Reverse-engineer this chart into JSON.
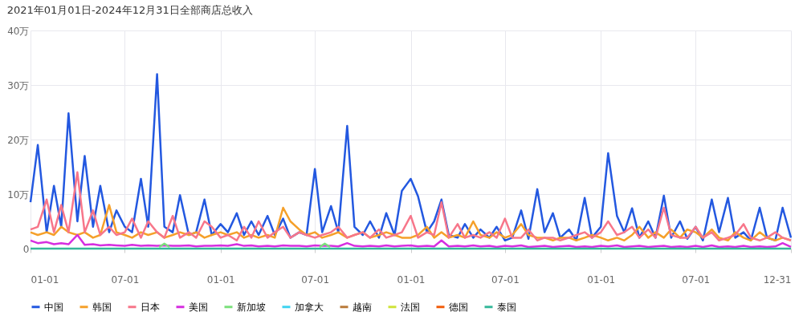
{
  "chart_data": {
    "type": "line",
    "title": "2021年01月01日-2024年12月31日全部商店总收入",
    "x": [
      "2021-01-01",
      "2021-01-15",
      "2021-02-01",
      "2021-02-15",
      "2021-03-01",
      "2021-03-15",
      "2021-04-01",
      "2021-04-15",
      "2021-05-01",
      "2021-05-15",
      "2021-06-01",
      "2021-06-15",
      "2021-07-01",
      "2021-07-15",
      "2021-08-01",
      "2021-08-15",
      "2021-09-01",
      "2021-09-15",
      "2021-10-01",
      "2021-10-15",
      "2021-11-01",
      "2021-11-15",
      "2021-12-01",
      "2021-12-15",
      "2022-01-01",
      "2022-01-15",
      "2022-02-01",
      "2022-02-15",
      "2022-03-01",
      "2022-03-15",
      "2022-04-01",
      "2022-04-15",
      "2022-05-01",
      "2022-05-15",
      "2022-06-01",
      "2022-06-15",
      "2022-07-01",
      "2022-07-15",
      "2022-08-01",
      "2022-08-15",
      "2022-09-01",
      "2022-09-15",
      "2022-10-01",
      "2022-10-15",
      "2022-11-01",
      "2022-11-15",
      "2022-12-01",
      "2022-12-15",
      "2023-01-01",
      "2023-01-15",
      "2023-02-01",
      "2023-02-15",
      "2023-03-01",
      "2023-03-15",
      "2023-04-01",
      "2023-04-15",
      "2023-05-01",
      "2023-05-15",
      "2023-06-01",
      "2023-06-15",
      "2023-07-01",
      "2023-07-15",
      "2023-08-01",
      "2023-08-15",
      "2023-09-01",
      "2023-09-15",
      "2023-10-01",
      "2023-10-15",
      "2023-11-01",
      "2023-11-15",
      "2023-12-01",
      "2023-12-15",
      "2024-01-01",
      "2024-01-15",
      "2024-02-01",
      "2024-02-15",
      "2024-03-01",
      "2024-03-15",
      "2024-04-01",
      "2024-04-15",
      "2024-05-01",
      "2024-05-15",
      "2024-06-01",
      "2024-06-15",
      "2024-07-01",
      "2024-07-15",
      "2024-08-01",
      "2024-08-15",
      "2024-09-01",
      "2024-09-15",
      "2024-10-01",
      "2024-10-15",
      "2024-11-01",
      "2024-11-15",
      "2024-12-01",
      "2024-12-15",
      "2024-12-31"
    ],
    "series": [
      {
        "name": "中国",
        "color": "#2358e0",
        "values": [
          8.5,
          19,
          3,
          11.5,
          4,
          24.8,
          5,
          17,
          4,
          11.5,
          3,
          7,
          4,
          3,
          12.8,
          4,
          32,
          4,
          3,
          9.8,
          2.5,
          3,
          9,
          2.5,
          4.5,
          3,
          6.5,
          2.5,
          5,
          2.5,
          6,
          2.5,
          5.5,
          2,
          3,
          2.5,
          14.6,
          3,
          7.8,
          3,
          22.5,
          4,
          2.5,
          5,
          2,
          6.5,
          2.5,
          10.6,
          12.8,
          9.6,
          3,
          5,
          9,
          2.5,
          2,
          4.5,
          2,
          3.5,
          2,
          4,
          1.5,
          2,
          7,
          1.8,
          10.9,
          3,
          6.5,
          2,
          3.5,
          1.5,
          9.3,
          2,
          4,
          17.5,
          6,
          3,
          7.4,
          2,
          5,
          2,
          9.7,
          2,
          5,
          1.8,
          4,
          1.5,
          9,
          3,
          9.3,
          2,
          3,
          1.5,
          7.5,
          2,
          1.5,
          7.5,
          2
        ]
      },
      {
        "name": "韩国",
        "color": "#f5a02a",
        "values": [
          3,
          2.5,
          3,
          2.5,
          4,
          3,
          2.5,
          3,
          2,
          2.5,
          8,
          3,
          2.5,
          2,
          3,
          2.5,
          3,
          2,
          2.5,
          3,
          2.5,
          3,
          2,
          2.5,
          3,
          2.5,
          3,
          2,
          2.5,
          2,
          2.5,
          2,
          7.5,
          5,
          3.5,
          2.5,
          3,
          2,
          2.5,
          3,
          2,
          2.5,
          3,
          2,
          2.5,
          3,
          2.5,
          2,
          2,
          2.5,
          4,
          2,
          3,
          2,
          2.5,
          2,
          5,
          2.5,
          2,
          3,
          2,
          2.5,
          4.5,
          2.5,
          2,
          2,
          1.5,
          2,
          2,
          1.5,
          2,
          2.5,
          2,
          1.5,
          2,
          1.5,
          2.5,
          4,
          2,
          3,
          2,
          3.5,
          2,
          3.5,
          3,
          2,
          3.5,
          2,
          1.5,
          3,
          2,
          1.5,
          3,
          2,
          1.5,
          2,
          1.5
        ]
      },
      {
        "name": "日本",
        "color": "#f7768a",
        "values": [
          3.5,
          4,
          9,
          3,
          8,
          3,
          14,
          3,
          7,
          2.5,
          4,
          2.5,
          3,
          5.5,
          2,
          5,
          3,
          2,
          6,
          2,
          3,
          2,
          5,
          4,
          2,
          2.5,
          1.5,
          4,
          2,
          5,
          2,
          3,
          4,
          2,
          3,
          2.5,
          2,
          2.5,
          3,
          4,
          2,
          2.5,
          3,
          2,
          3.5,
          2,
          2.5,
          3,
          6,
          2,
          3,
          2.5,
          8.5,
          2,
          4.5,
          2,
          2.5,
          2,
          3,
          2,
          5.5,
          2,
          2,
          3.5,
          1.5,
          2,
          2,
          1.5,
          2,
          2.5,
          3,
          2,
          3,
          5,
          2.5,
          3,
          4,
          2,
          3.5,
          2,
          7.5,
          2.5,
          2,
          2,
          4,
          2,
          3,
          1.5,
          2,
          2.5,
          4.5,
          2,
          1.5,
          2,
          3,
          2,
          1.5
        ]
      },
      {
        "name": "美国",
        "color": "#d62ee0",
        "values": [
          1.5,
          1,
          1.2,
          0.8,
          1,
          0.8,
          2.5,
          0.7,
          0.8,
          0.6,
          0.7,
          0.6,
          0.5,
          0.7,
          0.5,
          0.6,
          0.5,
          0.6,
          0.5,
          0.5,
          0.6,
          0.4,
          0.5,
          0.5,
          0.6,
          0.5,
          0.8,
          0.5,
          0.6,
          0.4,
          0.5,
          0.4,
          0.6,
          0.5,
          0.5,
          0.4,
          0.6,
          0.5,
          0.5,
          0.4,
          1,
          0.5,
          0.4,
          0.5,
          0.4,
          0.6,
          0.4,
          0.5,
          0.6,
          0.4,
          0.5,
          0.4,
          1.5,
          0.4,
          0.5,
          0.4,
          0.6,
          0.4,
          0.5,
          0.3,
          0.5,
          0.4,
          0.6,
          0.3,
          0.4,
          0.5,
          0.3,
          0.4,
          0.5,
          0.3,
          0.4,
          0.3,
          0.5,
          0.4,
          0.6,
          0.3,
          0.4,
          0.5,
          0.3,
          0.4,
          0.5,
          0.3,
          0.4,
          0.3,
          0.5,
          0.3,
          0.6,
          0.3,
          0.4,
          0.3,
          0.5,
          0.3,
          0.4,
          0.3,
          0.4,
          1,
          0.3
        ]
      },
      {
        "name": "新加坡",
        "color": "#7be07b",
        "x": [
          "2021-09-05",
          "2021-09-15",
          "2021-09-25",
          "2021-10-01",
          "2022-07-10",
          "2022-07-20",
          "2022-07-30"
        ],
        "values": [
          0.3,
          0.9,
          0.3,
          null,
          0.3,
          0.9,
          0.3
        ]
      },
      {
        "name": "加拿大",
        "color": "#3fd3f0",
        "values": [
          null,
          null,
          null,
          null,
          null,
          null,
          null,
          null,
          null,
          null,
          null,
          null,
          null,
          null,
          null,
          null,
          null,
          null,
          null,
          null,
          null,
          null,
          null,
          null,
          null,
          null,
          null,
          null,
          null,
          null,
          null,
          null,
          null,
          null,
          null,
          null,
          null,
          null,
          null,
          null,
          null,
          null,
          null,
          null,
          null,
          null,
          null,
          null,
          null,
          null,
          null,
          null,
          null,
          null,
          null,
          null,
          null,
          null,
          null,
          null,
          null,
          null,
          null,
          null,
          null,
          null,
          null,
          null,
          null,
          null,
          null,
          null,
          null,
          null,
          null,
          null,
          null,
          null,
          null,
          null,
          null,
          null,
          null,
          null,
          null,
          null,
          null,
          null,
          null,
          null,
          null,
          null,
          null,
          null,
          null,
          null,
          null
        ]
      },
      {
        "name": "越南",
        "color": "#b87a3a",
        "values": [
          null,
          null,
          null,
          null,
          null,
          null,
          null,
          null,
          null,
          null,
          null,
          null,
          null,
          null,
          null,
          null,
          null,
          null,
          null,
          null,
          null,
          null,
          null,
          null,
          null,
          null,
          null,
          null,
          null,
          null,
          null,
          null,
          null,
          null,
          null,
          null,
          null,
          null,
          null,
          null,
          null,
          null,
          null,
          null,
          null,
          null,
          null,
          null,
          null,
          null,
          null,
          null,
          null,
          null,
          null,
          null,
          null,
          null,
          null,
          null,
          null,
          null,
          null,
          null,
          null,
          null,
          null,
          null,
          null,
          null,
          null,
          null,
          null,
          null,
          null,
          null,
          null,
          null,
          null,
          null,
          null,
          null,
          null,
          null,
          null,
          null,
          null,
          null,
          null,
          null,
          null,
          null,
          null,
          null,
          null,
          null,
          null
        ]
      },
      {
        "name": "法国",
        "color": "#cfe33a",
        "values": [
          null,
          null,
          null,
          null,
          null,
          null,
          null,
          null,
          null,
          null,
          null,
          null,
          null,
          null,
          null,
          null,
          null,
          null,
          null,
          null,
          null,
          null,
          null,
          null,
          null,
          null,
          null,
          null,
          null,
          null,
          null,
          null,
          null,
          null,
          null,
          null,
          null,
          null,
          null,
          null,
          null,
          null,
          null,
          null,
          null,
          null,
          null,
          null,
          null,
          null,
          null,
          null,
          null,
          null,
          null,
          null,
          null,
          null,
          null,
          null,
          null,
          null,
          null,
          null,
          null,
          null,
          null,
          null,
          null,
          null,
          null,
          null,
          null,
          null,
          null,
          null,
          null,
          null,
          null,
          null,
          null,
          null,
          null,
          null,
          null,
          null,
          null,
          null,
          null,
          null,
          null,
          null,
          null,
          null,
          null,
          null,
          null
        ]
      },
      {
        "name": "德国",
        "color": "#f25c0a",
        "values": [
          null,
          null,
          null,
          null,
          null,
          null,
          null,
          null,
          null,
          null,
          null,
          null,
          null,
          null,
          null,
          null,
          null,
          null,
          null,
          null,
          null,
          null,
          null,
          null,
          null,
          null,
          null,
          null,
          null,
          null,
          null,
          null,
          null,
          null,
          null,
          null,
          null,
          null,
          null,
          null,
          null,
          null,
          null,
          null,
          null,
          null,
          null,
          null,
          null,
          null,
          null,
          null,
          null,
          null,
          null,
          null,
          null,
          null,
          null,
          null,
          null,
          null,
          null,
          null,
          null,
          null,
          null,
          null,
          null,
          null,
          null,
          null,
          null,
          null,
          null,
          null,
          null,
          null,
          null,
          null,
          null,
          null,
          null,
          null,
          null,
          null,
          null,
          null,
          null,
          null,
          null,
          null,
          null,
          null,
          null,
          null,
          null
        ]
      },
      {
        "name": "泰国",
        "color": "#36b89a",
        "x": [
          "2021-01-01",
          "2021-07-01",
          "2022-01-01",
          "2022-07-01",
          "2023-01-01",
          "2023-07-01",
          "2024-01-01",
          "2024-07-01",
          "2024-12-31"
        ],
        "values": [
          0,
          0,
          0,
          0,
          0,
          0,
          0,
          0,
          0
        ]
      }
    ],
    "xlim": [
      "2021-01-01",
      "2024-12-31"
    ],
    "xticks": [
      {
        "value": "2021-01-01",
        "label": "01-01"
      },
      {
        "value": "2021-07-01",
        "label": "07-01"
      },
      {
        "value": "2022-01-01",
        "label": "01-01"
      },
      {
        "value": "2022-07-01",
        "label": "07-01"
      },
      {
        "value": "2023-01-01",
        "label": "01-01"
      },
      {
        "value": "2023-07-01",
        "label": "07-01"
      },
      {
        "value": "2024-01-01",
        "label": "01-01"
      },
      {
        "value": "2024-07-01",
        "label": "07-01"
      },
      {
        "value": "2024-12-31",
        "label": "12-31"
      }
    ],
    "ylim": [
      0,
      40
    ],
    "yticks": [
      {
        "value": 0,
        "label": "0"
      },
      {
        "value": 10,
        "label": "10万"
      },
      {
        "value": 20,
        "label": "20万"
      },
      {
        "value": 30,
        "label": "30万"
      },
      {
        "value": 40,
        "label": "40万"
      }
    ],
    "grid": true,
    "legend": "bottom",
    "marker": "none",
    "line_style": "solid"
  }
}
